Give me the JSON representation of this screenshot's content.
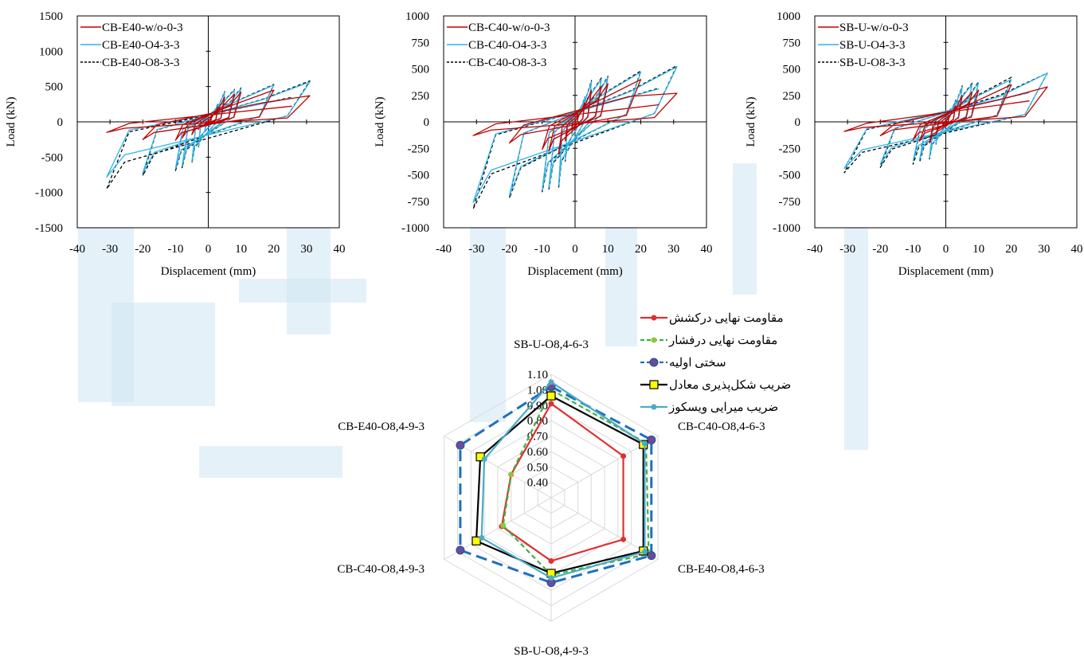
{
  "chart_data": [
    {
      "type": "line",
      "xlabel": "Displacement (mm)",
      "ylabel": "Load (kN)",
      "xlim": [
        -40,
        40
      ],
      "ylim": [
        -1500,
        1500
      ],
      "xticks": [
        -40,
        -30,
        -20,
        -10,
        0,
        10,
        20,
        30,
        40
      ],
      "yticks": [
        -1500,
        -1000,
        -500,
        0,
        500,
        1000,
        1500
      ],
      "yticklabels": [
        "-1500",
        "-1000",
        "-500",
        "0",
        "500",
        "1000",
        "1500"
      ],
      "legend_position": "top-left",
      "series": [
        {
          "name": "CB-E40-w/o-0-3",
          "color": "#c00000",
          "style": "solid",
          "envelope": {
            "pos": [
              [
                0,
                0
              ],
              [
                5,
                350
              ],
              [
                10,
                420
              ],
              [
                20,
                450
              ],
              [
                30,
                470
              ],
              [
                31,
                370
              ]
            ],
            "neg": [
              [
                0,
                0
              ],
              [
                -5,
                -180
              ],
              [
                -10,
                -260
              ],
              [
                -20,
                -250
              ],
              [
                -30,
                -150
              ]
            ]
          }
        },
        {
          "name": "CB-E40-O4-3-3",
          "color": "#2eb3e6",
          "style": "solid",
          "envelope": {
            "pos": [
              [
                0,
                0
              ],
              [
                5,
                420
              ],
              [
                10,
                470
              ],
              [
                20,
                520
              ],
              [
                30,
                565
              ]
            ],
            "neg": [
              [
                0,
                0
              ],
              [
                -5,
                -570
              ],
              [
                -10,
                -660
              ],
              [
                -20,
                -720
              ],
              [
                -31,
                -780
              ]
            ]
          }
        },
        {
          "name": "CB-E40-O8-3-3",
          "color": "#000000",
          "style": "dashed",
          "envelope": {
            "pos": [
              [
                0,
                0
              ],
              [
                5,
                430
              ],
              [
                10,
                480
              ],
              [
                20,
                530
              ],
              [
                30,
                580
              ]
            ],
            "neg": [
              [
                0,
                0
              ],
              [
                -5,
                -590
              ],
              [
                -10,
                -690
              ],
              [
                -20,
                -760
              ],
              [
                -31,
                -950
              ]
            ]
          }
        }
      ]
    },
    {
      "type": "line",
      "xlabel": "Displacement (mm)",
      "ylabel": "Load (kN)",
      "xlim": [
        -40,
        40
      ],
      "ylim": [
        -1000,
        1000
      ],
      "xticks": [
        -40,
        -30,
        -20,
        -10,
        0,
        10,
        20,
        30,
        40
      ],
      "yticks": [
        -1000,
        -750,
        -500,
        -250,
        0,
        250,
        500,
        750,
        1000
      ],
      "yticklabels": [
        "-1000",
        "-750",
        "-500",
        "-250",
        "0",
        "250",
        "500",
        "750",
        "1000"
      ],
      "legend_position": "top-left",
      "series": [
        {
          "name": "CB-C40-w/o-0-3",
          "color": "#c00000",
          "style": "solid",
          "envelope": {
            "pos": [
              [
                0,
                0
              ],
              [
                5,
                300
              ],
              [
                10,
                360
              ],
              [
                20,
                400
              ],
              [
                30,
                480
              ],
              [
                31,
                270
              ]
            ],
            "neg": [
              [
                0,
                0
              ],
              [
                -5,
                -300
              ],
              [
                -10,
                -260
              ],
              [
                -20,
                -200
              ],
              [
                -30,
                -130
              ]
            ]
          }
        },
        {
          "name": "CB-C40-O4-3-3",
          "color": "#2eb3e6",
          "style": "solid",
          "envelope": {
            "pos": [
              [
                0,
                0
              ],
              [
                5,
                380
              ],
              [
                10,
                420
              ],
              [
                20,
                470
              ],
              [
                31,
                520
              ]
            ],
            "neg": [
              [
                0,
                0
              ],
              [
                -5,
                -600
              ],
              [
                -10,
                -640
              ],
              [
                -20,
                -700
              ],
              [
                -31,
                -760
              ]
            ]
          }
        },
        {
          "name": "CB-C40-O8-3-3",
          "color": "#000000",
          "style": "dashed",
          "envelope": {
            "pos": [
              [
                0,
                0
              ],
              [
                5,
                390
              ],
              [
                10,
                430
              ],
              [
                20,
                480
              ],
              [
                31,
                530
              ]
            ],
            "neg": [
              [
                0,
                0
              ],
              [
                -5,
                -620
              ],
              [
                -10,
                -660
              ],
              [
                -20,
                -720
              ],
              [
                -31,
                -820
              ]
            ]
          }
        }
      ]
    },
    {
      "type": "line",
      "xlabel": "Displacement (mm)",
      "ylabel": "Load (kN)",
      "xlim": [
        -40,
        40
      ],
      "ylim": [
        -1000,
        1000
      ],
      "xticks": [
        -40,
        -30,
        -20,
        -10,
        0,
        10,
        20,
        30,
        40
      ],
      "yticks": [
        -1000,
        -750,
        -500,
        -250,
        0,
        250,
        500,
        750,
        1000
      ],
      "yticklabels": [
        "-1000",
        "-750",
        "-500",
        "-250",
        "0",
        "250",
        "500",
        "750",
        "1000"
      ],
      "legend_position": "top-left",
      "series": [
        {
          "name": "SB-U-w/o-0-3",
          "color": "#c00000",
          "style": "solid",
          "envelope": {
            "pos": [
              [
                0,
                0
              ],
              [
                5,
                250
              ],
              [
                10,
                300
              ],
              [
                20,
                350
              ],
              [
                30,
                440
              ],
              [
                31,
                330
              ]
            ],
            "neg": [
              [
                0,
                0
              ],
              [
                -5,
                -200
              ],
              [
                -10,
                -170
              ],
              [
                -20,
                -130
              ],
              [
                -30,
                -90
              ]
            ]
          }
        },
        {
          "name": "SB-U-O4-3-3",
          "color": "#2eb3e6",
          "style": "solid",
          "envelope": {
            "pos": [
              [
                0,
                0
              ],
              [
                5,
                330
              ],
              [
                10,
                370
              ],
              [
                20,
                400
              ],
              [
                31,
                460
              ]
            ],
            "neg": [
              [
                0,
                0
              ],
              [
                -5,
                -340
              ],
              [
                -10,
                -370
              ],
              [
                -20,
                -400
              ],
              [
                -31,
                -440
              ]
            ]
          }
        },
        {
          "name": "SB-U-O8-3-3",
          "color": "#000000",
          "style": "dashed",
          "envelope": {
            "pos": [
              [
                0,
                0
              ],
              [
                5,
                340
              ],
              [
                10,
                380
              ],
              [
                20,
                420
              ],
              [
                31,
                460
              ]
            ],
            "neg": [
              [
                0,
                0
              ],
              [
                -5,
                -350
              ],
              [
                -10,
                -400
              ],
              [
                -20,
                -430
              ],
              [
                -31,
                -480
              ]
            ]
          }
        }
      ]
    },
    {
      "type": "radar",
      "categories": [
        "SB-U-O8,4-6-3",
        "CB-C40-O8,4-6-3",
        "CB-E40-O8,4-6-3",
        "SB-U-O8,4-9-3",
        "CB-C40-O8,4-9-3",
        "CB-E40-O8,4-9-3"
      ],
      "rlim": [
        0.3,
        1.1
      ],
      "ticks": [
        0.4,
        0.5,
        0.6,
        0.7,
        0.8,
        0.9,
        1.0,
        1.1
      ],
      "ticklabels": [
        "0.40",
        "0.50",
        "0.60",
        "0.70",
        "0.80",
        "0.90",
        "1.00",
        "1.10"
      ],
      "legend_position": "top-right",
      "series": [
        {
          "name": "مقاومت نهایی درکشش",
          "color": "#e03030",
          "style": "solid",
          "marker": "circle",
          "values": [
            0.91,
            0.84,
            0.84,
            0.71,
            0.67,
            0.6
          ]
        },
        {
          "name": "مقاومت نهایی درفشار",
          "color": "#3cb043",
          "marker_color": "#8dc63f",
          "style": "dashed",
          "marker": "circle",
          "values": [
            1.0,
            1.01,
            1.03,
            0.8,
            0.66,
            0.6
          ]
        },
        {
          "name": "سختی اولیه",
          "color": "#1f6fbf",
          "marker_color": "#6a4c9c",
          "style": "dashed",
          "marker": "circle",
          "values": [
            1.02,
            1.05,
            1.05,
            0.85,
            0.98,
            0.98
          ]
        },
        {
          "name": "ضریب شکل‌پذیری معادل",
          "color": "#000000",
          "marker_color": "#ffff00",
          "style": "solid",
          "marker": "square",
          "values": [
            0.96,
            0.99,
            0.99,
            0.79,
            0.86,
            0.83
          ]
        },
        {
          "name": "ضریب میرایی ویسکوز",
          "color": "#4bacc6",
          "style": "solid",
          "marker": "circle",
          "values": [
            1.05,
            1.0,
            1.0,
            0.82,
            0.82,
            0.8
          ]
        }
      ]
    }
  ]
}
